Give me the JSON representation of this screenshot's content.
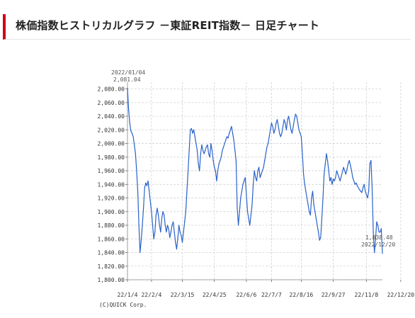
{
  "page": {
    "title": "株価指数ヒストリカルグラフ －東証REIT指数－ 日足チャート"
  },
  "chart_data": {
    "type": "line",
    "xlabel": "",
    "ylabel": "",
    "ylim": [
      1800,
      2090
    ],
    "y_ticks": [
      1800,
      1820,
      1840,
      1860,
      1880,
      1900,
      1920,
      1940,
      1960,
      1980,
      2000,
      2020,
      2040,
      2060,
      2080
    ],
    "y_tick_labels": [
      "1,800.00",
      "1,820.00",
      "1,840.00",
      "1,860.00",
      "1,880.00",
      "1,900.00",
      "1,920.00",
      "1,940.00",
      "1,960.00",
      "1,980.00",
      "2,000.00",
      "2,020.00",
      "2,040.00",
      "2,060.00",
      "2,080.00"
    ],
    "x_tick_labels": [
      "22/1/4",
      "22/2/4",
      "22/3/15",
      "22/4/25",
      "22/6/6",
      "22/7/7",
      "22/8/16",
      "22/9/27",
      "22/11/8",
      "22/12/20"
    ],
    "x_tick_index": [
      0,
      21,
      48,
      76,
      104,
      126,
      152,
      180,
      209,
      239
    ],
    "grid": true,
    "series_color": "#2a62c9",
    "series": [
      {
        "values": [
          2081.04,
          2050,
          2030,
          2018,
          2015,
          2010,
          1998,
          1985,
          1960,
          1930,
          1880,
          1840,
          1858,
          1880,
          1905,
          1935,
          1942,
          1938,
          1945,
          1930,
          1915,
          1900,
          1880,
          1860,
          1870,
          1895,
          1905,
          1895,
          1880,
          1870,
          1890,
          1900,
          1895,
          1880,
          1870,
          1880,
          1875,
          1862,
          1870,
          1880,
          1885,
          1870,
          1855,
          1845,
          1860,
          1880,
          1870,
          1865,
          1855,
          1870,
          1885,
          1900,
          1930,
          1960,
          1990,
          2020,
          2022,
          2015,
          2020,
          2010,
          2000,
          1990,
          1970,
          1960,
          1985,
          1998,
          1990,
          1985,
          1990,
          1995,
          1998,
          1985,
          1980,
          2000,
          1990,
          1975,
          1965,
          1960,
          1945,
          1960,
          1970,
          1975,
          1980,
          1990,
          1995,
          2000,
          2005,
          2010,
          2008,
          2015,
          2020,
          2025,
          2015,
          2005,
          1990,
          1975,
          1905,
          1880,
          1900,
          1920,
          1930,
          1940,
          1945,
          1950,
          1925,
          1900,
          1890,
          1880,
          1895,
          1910,
          1940,
          1960,
          1950,
          1945,
          1960,
          1965,
          1950,
          1955,
          1960,
          1965,
          1975,
          1985,
          1995,
          2000,
          2010,
          2020,
          2030,
          2025,
          2015,
          2020,
          2030,
          2035,
          2025,
          2015,
          2010,
          2015,
          2025,
          2035,
          2030,
          2020,
          2035,
          2040,
          2030,
          2020,
          2015,
          2025,
          2035,
          2043,
          2040,
          2030,
          2020,
          2015,
          2010,
          1985,
          1955,
          1940,
          1930,
          1920,
          1910,
          1900,
          1895,
          1920,
          1930,
          1910,
          1900,
          1890,
          1880,
          1870,
          1858,
          1862,
          1890,
          1920,
          1955,
          1970,
          1985,
          1975,
          1960,
          1945,
          1950,
          1940,
          1948,
          1945,
          1950,
          1960,
          1955,
          1950,
          1945,
          1952,
          1958,
          1965,
          1960,
          1955,
          1962,
          1970,
          1975,
          1968,
          1960,
          1950,
          1945,
          1940,
          1942,
          1938,
          1935,
          1932,
          1930,
          1928,
          1935,
          1940,
          1930,
          1925,
          1920,
          1930,
          1970,
          1975,
          1935,
          1870,
          1840,
          1860,
          1885,
          1880,
          1870,
          1870,
          1875,
          1838.48
        ],
        "first": {
          "date": "2022/01/04",
          "label": "2,081.04"
        },
        "last": {
          "date": "2022/12/20",
          "label": "1,838.48"
        }
      }
    ]
  },
  "footer": {
    "credit": "(C)QUICK Corp."
  }
}
